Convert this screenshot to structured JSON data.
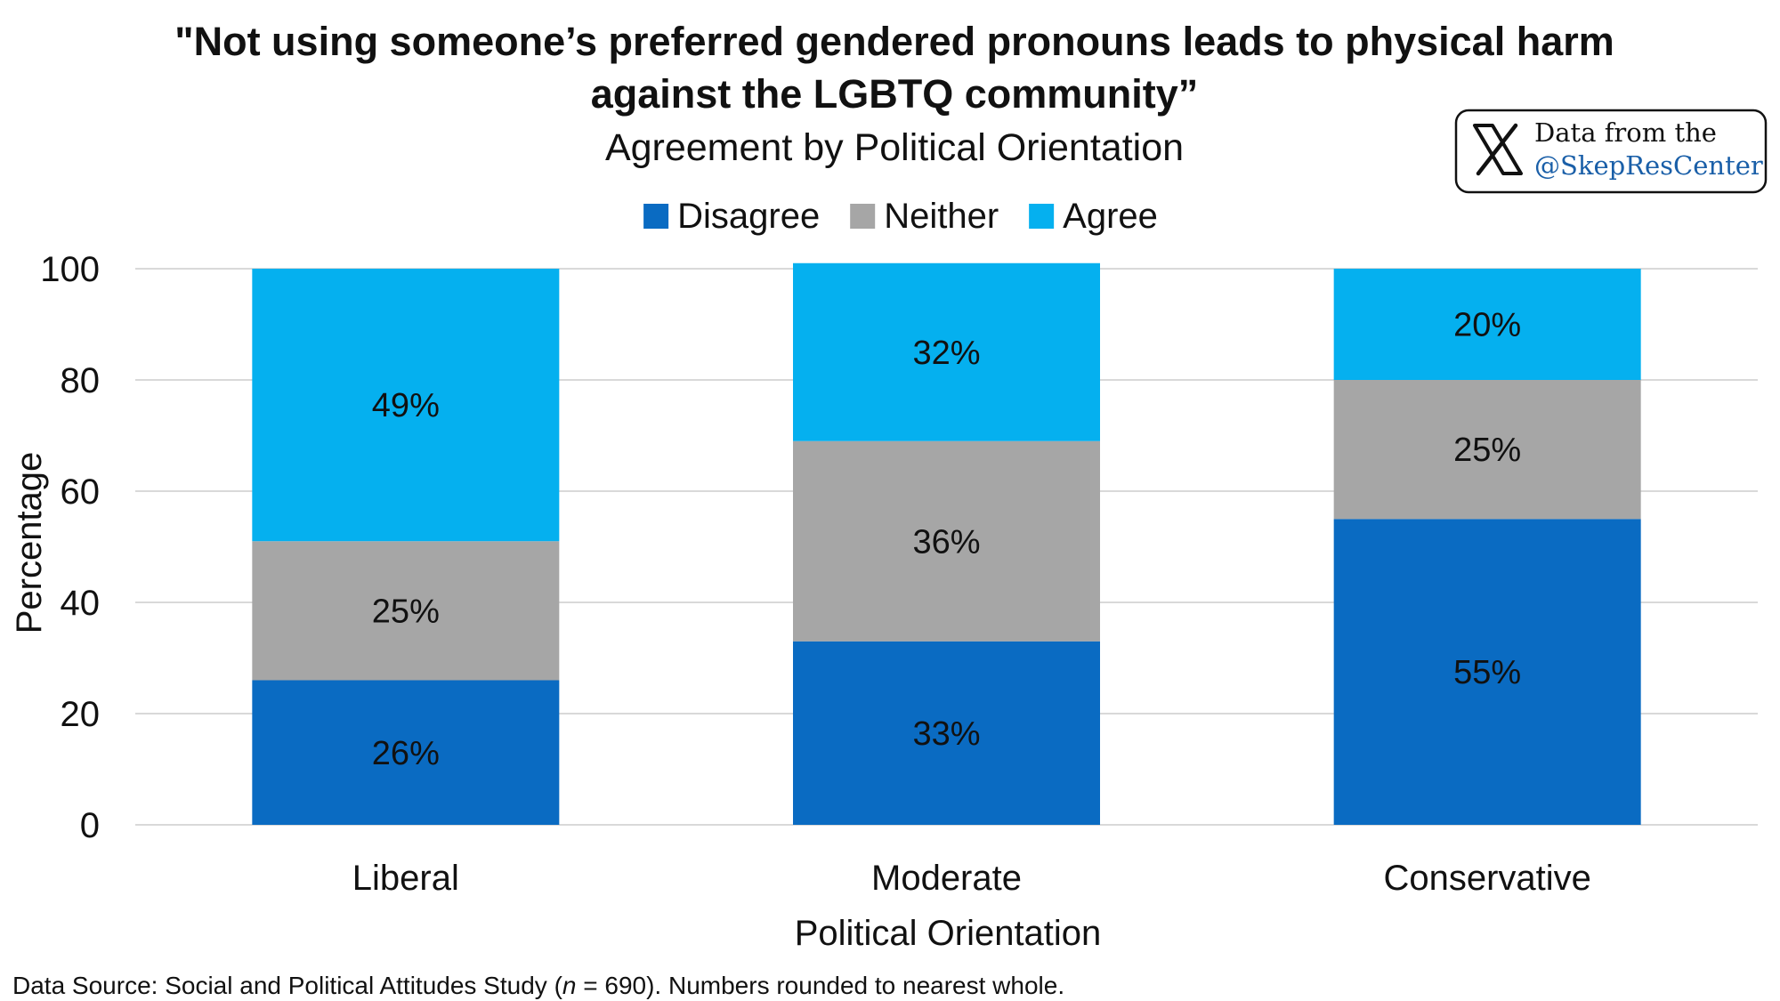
{
  "chart_data": {
    "type": "bar",
    "stacked": true,
    "title_line1": "\"Not using someone’s preferred gendered pronouns leads to physical harm",
    "title_line2": "against the LGBTQ community”",
    "subtitle": "Agreement by Political Orientation",
    "xlabel": "Political Orientation",
    "ylabel": "Percentage",
    "categories": [
      "Liberal",
      "Moderate",
      "Conservative"
    ],
    "series": [
      {
        "name": "Disagree",
        "values": [
          26,
          33,
          55
        ],
        "labels": [
          "26%",
          "33%",
          "55%"
        ],
        "color": "#0a6bc2"
      },
      {
        "name": "Neither",
        "values": [
          25,
          36,
          25
        ],
        "labels": [
          "25%",
          "36%",
          "25%"
        ],
        "color": "#a6a6a6"
      },
      {
        "name": "Agree",
        "values": [
          49,
          32,
          20
        ],
        "labels": [
          "49%",
          "32%",
          "20%"
        ],
        "color": "#05b0ef"
      }
    ],
    "ylim": [
      0,
      100
    ],
    "yticks": [
      "0",
      "20",
      "40",
      "60",
      "80",
      "100"
    ],
    "grid": true,
    "legend_position": "top"
  },
  "badge": {
    "line1": "Data from the",
    "line2": "@SkepResCenter",
    "icon": "x-logo-icon",
    "link_color": "#1a5fa8"
  },
  "footnote": {
    "prefix": "Data Source: Social and Political Attitudes Study (",
    "n_symbol": "n",
    "suffix": " = 690). Numbers rounded to nearest whole."
  }
}
